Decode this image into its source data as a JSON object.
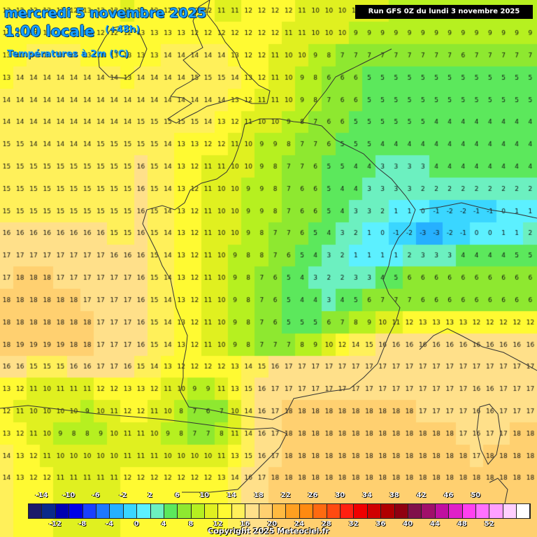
{
  "title": {
    "date": "mercredi 5 novembre 2025",
    "time": "1:00 locale",
    "lead": "(+48h)",
    "variable": "Températures à 2m (°C)"
  },
  "run_info": "Run GFS 0Z du lundi 3 novembre 2025",
  "copyright": "Copyright 2025 Meteociel.fr",
  "legend": {
    "upper_labels": [
      "-14",
      "-10",
      "-6",
      "-2",
      "2",
      "6",
      "10",
      "14",
      "18",
      "22",
      "26",
      "30",
      "34",
      "38",
      "42",
      "46",
      "50"
    ],
    "lower_labels": [
      "-12",
      "-8",
      "-4",
      "0",
      "4",
      "8",
      "12",
      "16",
      "20",
      "24",
      "28",
      "32",
      "36",
      "40",
      "44",
      "48",
      "52"
    ],
    "colors": [
      "#1a1a6a",
      "#0a2a8a",
      "#0000b0",
      "#0000e6",
      "#1a40ff",
      "#1e78ff",
      "#26b0ff",
      "#3ad6ff",
      "#5cf0ff",
      "#6cf0c0",
      "#5ce85c",
      "#8ee830",
      "#b6f020",
      "#e0f020",
      "#fffa32",
      "#fff05a",
      "#ffe08a",
      "#ffd070",
      "#ffba40",
      "#ffa020",
      "#ff8a10",
      "#ff6a10",
      "#ff4a10",
      "#ff2010",
      "#f00000",
      "#d00000",
      "#b00000",
      "#900010",
      "#80104a",
      "#a0106a",
      "#c010a0",
      "#e020c8",
      "#ff40f0",
      "#ff70ff",
      "#ffa0ff",
      "#ffd0ff",
      "#ffffff"
    ]
  },
  "chart_data": {
    "type": "heatmap",
    "title": "Températures à 2m (°C)",
    "grid_values": [
      [
        "13",
        "12",
        "13",
        "13",
        "13",
        "12",
        "13",
        "13",
        "12",
        "11",
        "12",
        "12",
        "12",
        "12",
        "12",
        "12",
        "11",
        "11",
        "12",
        "12",
        "12",
        "12",
        "11",
        "10",
        "10",
        "10",
        "10",
        "10",
        "10",
        "9",
        "9",
        "9",
        "9",
        "9",
        "8",
        "9",
        "9",
        "9",
        "9",
        "9"
      ],
      [
        "13",
        "13",
        "13",
        "13",
        "13",
        "13",
        "13",
        "12",
        "12",
        "12",
        "13",
        "13",
        "13",
        "13",
        "12",
        "12",
        "12",
        "12",
        "12",
        "12",
        "12",
        "11",
        "11",
        "10",
        "10",
        "10",
        "9",
        "9",
        "9",
        "9",
        "9",
        "9",
        "9",
        "9",
        "9",
        "9",
        "9",
        "9",
        "9",
        "9"
      ],
      [
        "13",
        "13",
        "14",
        "14",
        "14",
        "14",
        "13",
        "13",
        "13",
        "13",
        "13",
        "13",
        "14",
        "14",
        "14",
        "14",
        "14",
        "13",
        "12",
        "12",
        "11",
        "10",
        "10",
        "9",
        "8",
        "7",
        "7",
        "7",
        "7",
        "7",
        "7",
        "7",
        "7",
        "7",
        "6",
        "7",
        "7",
        "7",
        "7",
        "7"
      ],
      [
        "13",
        "14",
        "14",
        "14",
        "14",
        "14",
        "14",
        "14",
        "14",
        "13",
        "14",
        "14",
        "14",
        "14",
        "15",
        "15",
        "15",
        "14",
        "13",
        "12",
        "11",
        "10",
        "9",
        "8",
        "6",
        "6",
        "6",
        "5",
        "5",
        "5",
        "5",
        "5",
        "5",
        "5",
        "5",
        "5",
        "5",
        "5",
        "5",
        "5"
      ],
      [
        "14",
        "14",
        "14",
        "14",
        "14",
        "14",
        "14",
        "14",
        "14",
        "14",
        "14",
        "14",
        "14",
        "14",
        "14",
        "14",
        "14",
        "13",
        "12",
        "11",
        "11",
        "10",
        "9",
        "8",
        "7",
        "6",
        "6",
        "5",
        "5",
        "5",
        "5",
        "5",
        "5",
        "5",
        "5",
        "5",
        "5",
        "5",
        "5",
        "5"
      ],
      [
        "14",
        "14",
        "14",
        "14",
        "14",
        "14",
        "14",
        "14",
        "14",
        "14",
        "15",
        "15",
        "15",
        "15",
        "15",
        "14",
        "13",
        "12",
        "11",
        "10",
        "10",
        "9",
        "8",
        "7",
        "6",
        "6",
        "5",
        "5",
        "5",
        "5",
        "5",
        "5",
        "4",
        "4",
        "4",
        "4",
        "4",
        "4",
        "4",
        "4"
      ],
      [
        "15",
        "15",
        "14",
        "14",
        "14",
        "14",
        "14",
        "15",
        "15",
        "15",
        "15",
        "15",
        "14",
        "13",
        "13",
        "12",
        "12",
        "11",
        "10",
        "9",
        "9",
        "8",
        "7",
        "7",
        "6",
        "5",
        "5",
        "5",
        "4",
        "4",
        "4",
        "4",
        "4",
        "4",
        "4",
        "4",
        "4",
        "4",
        "4",
        "4"
      ],
      [
        "15",
        "15",
        "15",
        "15",
        "15",
        "15",
        "15",
        "15",
        "15",
        "15",
        "16",
        "15",
        "14",
        "13",
        "12",
        "11",
        "11",
        "10",
        "10",
        "9",
        "8",
        "7",
        "7",
        "6",
        "5",
        "5",
        "4",
        "4",
        "3",
        "3",
        "3",
        "3",
        "4",
        "4",
        "4",
        "4",
        "4",
        "4",
        "4",
        "4"
      ],
      [
        "15",
        "15",
        "15",
        "15",
        "15",
        "15",
        "15",
        "15",
        "15",
        "15",
        "16",
        "15",
        "14",
        "13",
        "12",
        "11",
        "10",
        "10",
        "9",
        "9",
        "8",
        "7",
        "6",
        "6",
        "5",
        "4",
        "4",
        "3",
        "3",
        "3",
        "3",
        "2",
        "2",
        "2",
        "2",
        "2",
        "2",
        "2",
        "2",
        "2"
      ],
      [
        "15",
        "15",
        "15",
        "15",
        "15",
        "15",
        "15",
        "15",
        "15",
        "15",
        "16",
        "15",
        "14",
        "13",
        "12",
        "11",
        "10",
        "10",
        "9",
        "9",
        "8",
        "7",
        "6",
        "6",
        "5",
        "4",
        "3",
        "3",
        "2",
        "1",
        "1",
        "0",
        "-1",
        "-2",
        "-2",
        "-1",
        "-1",
        "0",
        "1",
        "1"
      ],
      [
        "16",
        "16",
        "16",
        "16",
        "16",
        "16",
        "16",
        "16",
        "15",
        "15",
        "16",
        "15",
        "14",
        "13",
        "12",
        "11",
        "10",
        "10",
        "9",
        "8",
        "7",
        "7",
        "6",
        "5",
        "4",
        "3",
        "2",
        "1",
        "0",
        "-1",
        "-2",
        "-3",
        "-3",
        "-2",
        "-1",
        "0",
        "0",
        "1",
        "1",
        "2"
      ],
      [
        "17",
        "17",
        "17",
        "17",
        "17",
        "17",
        "17",
        "17",
        "16",
        "16",
        "16",
        "15",
        "14",
        "13",
        "12",
        "11",
        "10",
        "9",
        "8",
        "8",
        "7",
        "6",
        "5",
        "4",
        "3",
        "2",
        "1",
        "1",
        "1",
        "1",
        "2",
        "3",
        "3",
        "3",
        "4",
        "4",
        "4",
        "4",
        "5",
        "5"
      ],
      [
        "17",
        "18",
        "18",
        "18",
        "17",
        "17",
        "17",
        "17",
        "17",
        "17",
        "16",
        "15",
        "14",
        "13",
        "12",
        "11",
        "10",
        "9",
        "8",
        "7",
        "6",
        "5",
        "4",
        "3",
        "2",
        "2",
        "3",
        "3",
        "4",
        "5",
        "6",
        "6",
        "6",
        "6",
        "6",
        "6",
        "6",
        "6",
        "6",
        "6"
      ],
      [
        "18",
        "18",
        "18",
        "18",
        "18",
        "18",
        "17",
        "17",
        "17",
        "17",
        "16",
        "15",
        "14",
        "13",
        "12",
        "11",
        "10",
        "9",
        "8",
        "7",
        "6",
        "5",
        "4",
        "4",
        "3",
        "4",
        "5",
        "6",
        "7",
        "7",
        "7",
        "6",
        "6",
        "6",
        "6",
        "6",
        "6",
        "6",
        "6",
        "6"
      ],
      [
        "18",
        "18",
        "18",
        "18",
        "18",
        "18",
        "18",
        "17",
        "17",
        "17",
        "16",
        "15",
        "14",
        "13",
        "12",
        "11",
        "10",
        "9",
        "8",
        "7",
        "6",
        "5",
        "5",
        "5",
        "6",
        "7",
        "8",
        "9",
        "10",
        "11",
        "12",
        "13",
        "13",
        "13",
        "13",
        "12",
        "12",
        "12",
        "12",
        "12"
      ],
      [
        "18",
        "19",
        "19",
        "19",
        "19",
        "18",
        "18",
        "17",
        "17",
        "17",
        "16",
        "15",
        "14",
        "13",
        "12",
        "11",
        "10",
        "9",
        "8",
        "7",
        "7",
        "7",
        "8",
        "9",
        "10",
        "12",
        "14",
        "15",
        "16",
        "16",
        "16",
        "16",
        "16",
        "16",
        "16",
        "16",
        "16",
        "16",
        "16",
        "16"
      ],
      [
        "16",
        "16",
        "15",
        "15",
        "15",
        "16",
        "16",
        "17",
        "17",
        "16",
        "15",
        "14",
        "13",
        "12",
        "12",
        "12",
        "12",
        "13",
        "14",
        "15",
        "16",
        "17",
        "17",
        "17",
        "17",
        "17",
        "17",
        "17",
        "17",
        "17",
        "17",
        "17",
        "17",
        "17",
        "17",
        "17",
        "17",
        "17",
        "17",
        "17"
      ],
      [
        "13",
        "12",
        "11",
        "10",
        "11",
        "11",
        "11",
        "12",
        "12",
        "13",
        "13",
        "12",
        "11",
        "10",
        "9",
        "9",
        "11",
        "13",
        "15",
        "16",
        "17",
        "17",
        "17",
        "17",
        "17",
        "17",
        "17",
        "17",
        "17",
        "17",
        "17",
        "17",
        "17",
        "17",
        "17",
        "16",
        "16",
        "17",
        "17",
        "17"
      ],
      [
        "12",
        "11",
        "10",
        "10",
        "10",
        "10",
        "9",
        "10",
        "11",
        "12",
        "12",
        "11",
        "10",
        "8",
        "7",
        "6",
        "7",
        "10",
        "14",
        "16",
        "17",
        "18",
        "18",
        "18",
        "18",
        "18",
        "18",
        "18",
        "18",
        "18",
        "18",
        "17",
        "17",
        "17",
        "17",
        "16",
        "16",
        "17",
        "17",
        "17"
      ],
      [
        "13",
        "12",
        "11",
        "10",
        "9",
        "8",
        "8",
        "9",
        "10",
        "11",
        "11",
        "10",
        "9",
        "8",
        "7",
        "7",
        "8",
        "11",
        "14",
        "16",
        "17",
        "18",
        "18",
        "18",
        "18",
        "18",
        "18",
        "18",
        "18",
        "18",
        "18",
        "18",
        "18",
        "18",
        "17",
        "16",
        "17",
        "17",
        "18",
        "18"
      ],
      [
        "14",
        "13",
        "12",
        "11",
        "10",
        "10",
        "10",
        "10",
        "10",
        "11",
        "11",
        "11",
        "10",
        "10",
        "10",
        "10",
        "11",
        "13",
        "15",
        "16",
        "17",
        "18",
        "18",
        "18",
        "18",
        "18",
        "18",
        "18",
        "18",
        "18",
        "18",
        "18",
        "18",
        "18",
        "18",
        "17",
        "18",
        "18",
        "18",
        "18"
      ],
      [
        "14",
        "13",
        "12",
        "12",
        "11",
        "11",
        "11",
        "11",
        "11",
        "12",
        "12",
        "12",
        "12",
        "12",
        "12",
        "12",
        "13",
        "14",
        "16",
        "17",
        "18",
        "18",
        "18",
        "18",
        "18",
        "18",
        "18",
        "18",
        "18",
        "18",
        "18",
        "18",
        "18",
        "18",
        "18",
        "18",
        "18",
        "18",
        "18",
        "18"
      ]
    ],
    "grid_columns": 40,
    "grid_rows": 22,
    "unit": "°C",
    "color_scale_min": -14,
    "color_scale_max": 52,
    "color_scale_step": 2
  }
}
